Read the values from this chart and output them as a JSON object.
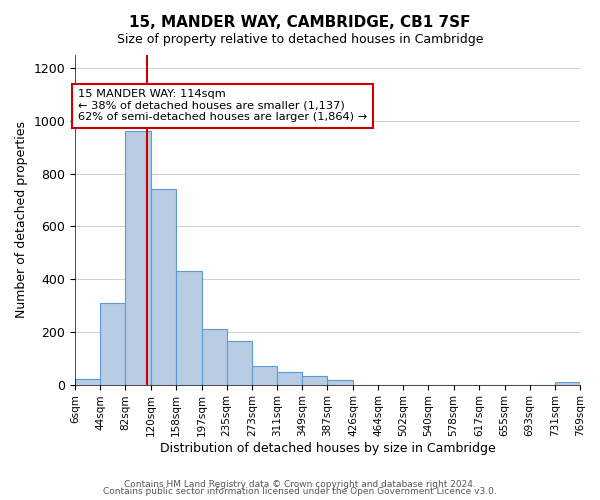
{
  "title": "15, MANDER WAY, CAMBRIDGE, CB1 7SF",
  "subtitle": "Size of property relative to detached houses in Cambridge",
  "xlabel": "Distribution of detached houses by size in Cambridge",
  "ylabel": "Number of detached properties",
  "footnote1": "Contains HM Land Registry data © Crown copyright and database right 2024.",
  "footnote2": "Contains public sector information licensed under the Open Government Licence v3.0.",
  "bar_edges": [
    6,
    44,
    82,
    120,
    158,
    197,
    235,
    273,
    311,
    349,
    387,
    426,
    464,
    502,
    540,
    578,
    617,
    655,
    693,
    731,
    769
  ],
  "bar_heights": [
    20,
    310,
    960,
    740,
    430,
    210,
    165,
    70,
    47,
    33,
    18,
    0,
    0,
    0,
    0,
    0,
    0,
    0,
    0,
    10
  ],
  "bar_color": "#b8cce4",
  "bar_edgecolor": "#5b9bd5",
  "property_line_x": 114,
  "property_line_color": "#cc0000",
  "annotation_text": "15 MANDER WAY: 114sqm\n← 38% of detached houses are smaller (1,137)\n62% of semi-detached houses are larger (1,864) →",
  "annotation_box_edgecolor": "#cc0000",
  "ylim": [
    0,
    1250
  ],
  "tick_labels": [
    "6sqm",
    "44sqm",
    "82sqm",
    "120sqm",
    "158sqm",
    "197sqm",
    "235sqm",
    "273sqm",
    "311sqm",
    "349sqm",
    "387sqm",
    "426sqm",
    "464sqm",
    "502sqm",
    "540sqm",
    "578sqm",
    "617sqm",
    "655sqm",
    "693sqm",
    "731sqm",
    "769sqm"
  ],
  "background_color": "#ffffff",
  "grid_color": "#d0d0d0"
}
